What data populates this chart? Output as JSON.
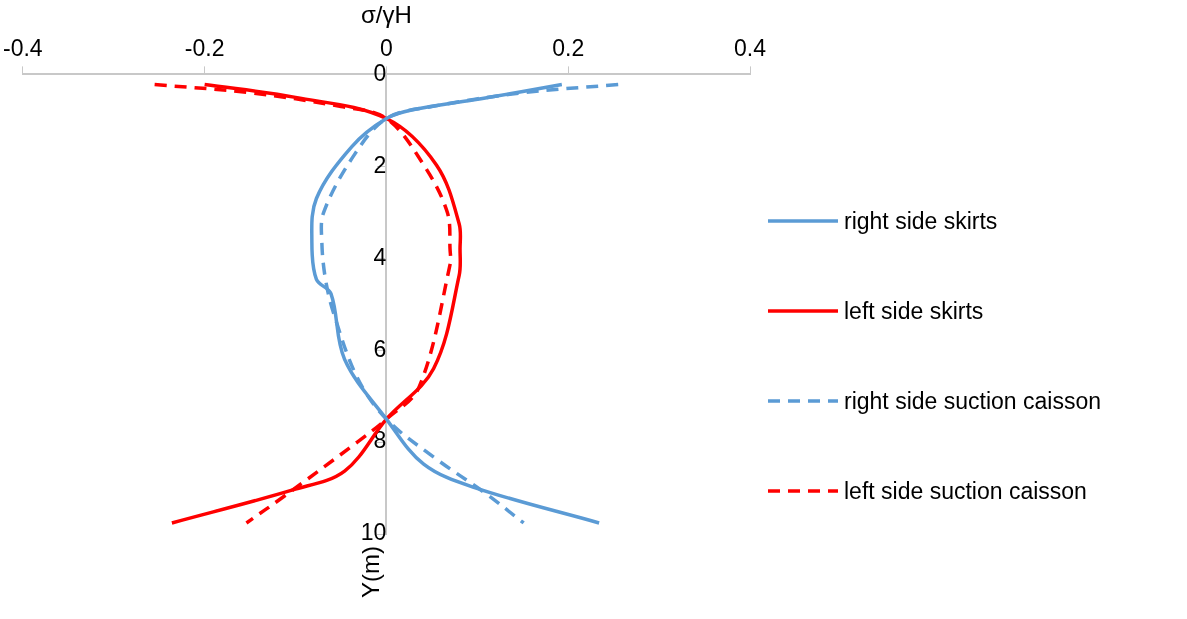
{
  "chart_data": {
    "type": "line",
    "xlabel": "σ/γH",
    "ylabel": "Y(m)",
    "xlim": [
      -0.4,
      0.4
    ],
    "xticks": [
      -0.4,
      -0.2,
      0,
      0.2,
      0.4
    ],
    "ylim": [
      10,
      0
    ],
    "yticks": [
      0,
      2,
      4,
      6,
      8,
      10
    ],
    "grid": false,
    "legend": "right",
    "marker": "none",
    "series": [
      {
        "name": "right side skirts",
        "color": "#5b9bd5",
        "line_style": "solid",
        "x": [
          0.193,
          0.104,
          0.029,
          0,
          -0.038,
          -0.077,
          -0.082,
          -0.077,
          -0.061,
          -0.046,
          0,
          0.041,
          0.097,
          0.234
        ],
        "values": [
          0.22,
          0.53,
          0.77,
          0.96,
          1.57,
          2.7,
          3.66,
          4.46,
          4.77,
          6.2,
          7.5,
          8.48,
          8.99,
          9.76
        ]
      },
      {
        "name": "left side skirts",
        "color": "#ff0000",
        "line_style": "solid",
        "x": [
          -0.2,
          -0.1,
          0,
          0.055,
          0.08,
          0.081,
          0.08,
          0.052,
          0,
          -0.046,
          -0.103,
          -0.236
        ],
        "values": [
          0.22,
          0.5,
          0.96,
          1.97,
          3.25,
          3.8,
          4.38,
          6.4,
          7.5,
          8.63,
          9.04,
          9.76
        ]
      },
      {
        "name": "right side suction caisson",
        "color": "#5b9bd5",
        "line_style": "dashed",
        "x": [
          0.255,
          0.15,
          0.05,
          0,
          -0.035,
          -0.069,
          -0.071,
          -0.067,
          -0.058,
          -0.032,
          0,
          0.055,
          0.108,
          0.151
        ],
        "values": [
          0.22,
          0.4,
          0.7,
          0.96,
          1.74,
          3.0,
          3.66,
          4.46,
          5.2,
          6.6,
          7.5,
          8.37,
          9.1,
          9.76
        ]
      },
      {
        "name": "left side suction caisson",
        "color": "#ff0000",
        "line_style": "dashed",
        "x": [
          -0.255,
          -0.15,
          -0.05,
          0,
          0.041,
          0.067,
          0.07,
          0.07,
          0.036,
          0,
          -0.032,
          -0.114,
          -0.154
        ],
        "values": [
          0.22,
          0.4,
          0.7,
          0.96,
          1.97,
          3.0,
          3.8,
          4.14,
          6.8,
          7.5,
          8.0,
          9.2,
          9.76
        ]
      }
    ]
  }
}
